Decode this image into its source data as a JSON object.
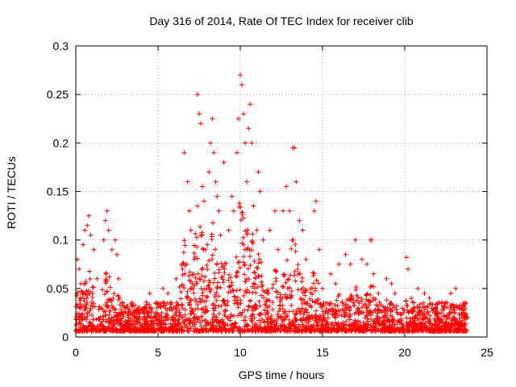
{
  "chart_data": {
    "type": "scatter",
    "title": "Day 316 of 2014, Rate Of TEC Index for receiver clib",
    "xlabel": "GPS time / hours",
    "ylabel": "ROTI / TECUs",
    "xlim": [
      0,
      25
    ],
    "ylim": [
      0,
      0.3
    ],
    "xticks": [
      0,
      5,
      10,
      15,
      20,
      25
    ],
    "xtick_labels": [
      "0",
      "5",
      "10",
      "15",
      "20",
      "25"
    ],
    "yticks": [
      0,
      0.05,
      0.1,
      0.15,
      0.2,
      0.25,
      0.3
    ],
    "ytick_labels": [
      "0",
      "0.05",
      "0.1",
      "0.15",
      "0.2",
      "0.25",
      "0.3"
    ],
    "grid": true,
    "marker": "+",
    "color": "#ff0000",
    "x_extent": [
      0,
      23.8
    ],
    "series": [
      {
        "name": "ROTI",
        "note": "dense band of observations roughly 0.005-0.04 across 0-23.8 h; representative points below",
        "points": [
          [
            0.1,
            0.08
          ],
          [
            0.2,
            0.07
          ],
          [
            0.3,
            0.055
          ],
          [
            0.45,
            0.095
          ],
          [
            0.55,
            0.11
          ],
          [
            0.7,
            0.115
          ],
          [
            0.8,
            0.125
          ],
          [
            0.9,
            0.105
          ],
          [
            1.1,
            0.09
          ],
          [
            1.3,
            0.06
          ],
          [
            1.7,
            0.1
          ],
          [
            1.8,
            0.12
          ],
          [
            1.9,
            0.13
          ],
          [
            2.0,
            0.11
          ],
          [
            2.2,
            0.09
          ],
          [
            2.4,
            0.1
          ],
          [
            2.5,
            0.085
          ],
          [
            2.6,
            0.06
          ],
          [
            4.5,
            0.045
          ],
          [
            5.3,
            0.05
          ],
          [
            5.6,
            0.045
          ],
          [
            5.8,
            0.035
          ],
          [
            6.1,
            0.06
          ],
          [
            6.6,
            0.19
          ],
          [
            6.8,
            0.16
          ],
          [
            6.9,
            0.13
          ],
          [
            7.0,
            0.11
          ],
          [
            7.2,
            0.08
          ],
          [
            7.4,
            0.25
          ],
          [
            7.5,
            0.23
          ],
          [
            7.6,
            0.22
          ],
          [
            7.7,
            0.155
          ],
          [
            7.8,
            0.14
          ],
          [
            7.9,
            0.09
          ],
          [
            8.0,
            0.095
          ],
          [
            8.1,
            0.17
          ],
          [
            8.2,
            0.2
          ],
          [
            8.3,
            0.225
          ],
          [
            8.4,
            0.19
          ],
          [
            8.5,
            0.16
          ],
          [
            8.6,
            0.145
          ],
          [
            8.7,
            0.13
          ],
          [
            8.8,
            0.105
          ],
          [
            9.0,
            0.18
          ],
          [
            9.3,
            0.11
          ],
          [
            9.5,
            0.145
          ],
          [
            9.6,
            0.13
          ],
          [
            9.8,
            0.19
          ],
          [
            9.9,
            0.225
          ],
          [
            10.0,
            0.27
          ],
          [
            10.1,
            0.26
          ],
          [
            10.2,
            0.23
          ],
          [
            10.3,
            0.2
          ],
          [
            10.4,
            0.16
          ],
          [
            10.5,
            0.215
          ],
          [
            10.6,
            0.24
          ],
          [
            10.7,
            0.2
          ],
          [
            10.8,
            0.135
          ],
          [
            11.0,
            0.11
          ],
          [
            11.1,
            0.17
          ],
          [
            11.2,
            0.15
          ],
          [
            11.4,
            0.1
          ],
          [
            11.8,
            0.11
          ],
          [
            12.1,
            0.13
          ],
          [
            12.3,
            0.09
          ],
          [
            12.6,
            0.13
          ],
          [
            12.8,
            0.155
          ],
          [
            13.0,
            0.13
          ],
          [
            13.2,
            0.195
          ],
          [
            13.3,
            0.195
          ],
          [
            13.4,
            0.16
          ],
          [
            13.6,
            0.12
          ],
          [
            13.8,
            0.11
          ],
          [
            14.0,
            0.08
          ],
          [
            14.5,
            0.13
          ],
          [
            14.6,
            0.14
          ],
          [
            14.8,
            0.09
          ],
          [
            15.0,
            0.05
          ],
          [
            15.5,
            0.065
          ],
          [
            15.8,
            0.055
          ],
          [
            16.0,
            0.075
          ],
          [
            16.4,
            0.085
          ],
          [
            16.7,
            0.075
          ],
          [
            17.0,
            0.1
          ],
          [
            17.4,
            0.08
          ],
          [
            17.7,
            0.075
          ],
          [
            17.9,
            0.1
          ],
          [
            18.0,
            0.1
          ],
          [
            18.1,
            0.065
          ],
          [
            18.4,
            0.045
          ],
          [
            18.9,
            0.06
          ],
          [
            19.2,
            0.055
          ],
          [
            19.4,
            0.045
          ],
          [
            20.1,
            0.082
          ],
          [
            20.2,
            0.07
          ],
          [
            20.4,
            0.04
          ],
          [
            20.8,
            0.05
          ],
          [
            21.2,
            0.045
          ],
          [
            21.5,
            0.04
          ],
          [
            22.0,
            0.035
          ],
          [
            22.4,
            0.03
          ],
          [
            22.8,
            0.045
          ],
          [
            23.1,
            0.05
          ],
          [
            23.3,
            0.03
          ],
          [
            23.6,
            0.02
          ]
        ]
      }
    ]
  }
}
